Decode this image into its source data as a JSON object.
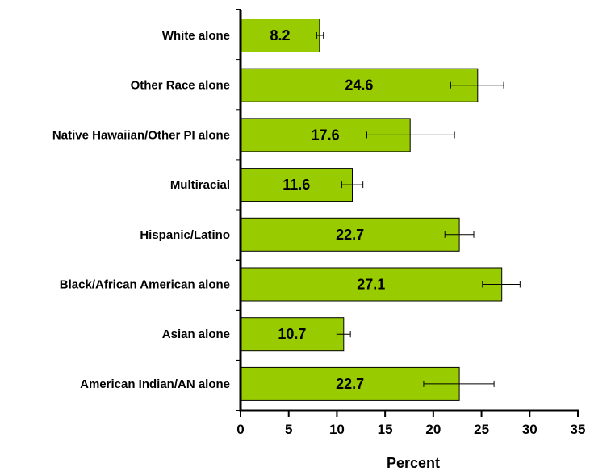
{
  "chart_data": {
    "type": "bar",
    "orientation": "horizontal",
    "categories": [
      "White alone",
      "Other Race alone",
      "Native Hawaiian/Other PI alone",
      "Multiracial",
      "Hispanic/Latino",
      "Black/African American alone",
      "Asian alone",
      "American Indian/AN alone"
    ],
    "values": [
      8.2,
      24.6,
      17.6,
      11.6,
      22.7,
      27.1,
      10.7,
      22.7
    ],
    "value_labels": [
      "8.2",
      "24.6",
      "17.6",
      "11.6",
      "22.7",
      "27.1",
      "10.7",
      "22.7"
    ],
    "error_low": [
      7.9,
      21.8,
      13.1,
      10.5,
      21.2,
      25.1,
      10.0,
      19.0
    ],
    "error_high": [
      8.6,
      27.3,
      22.2,
      12.7,
      24.2,
      29.0,
      11.4,
      26.3
    ],
    "xlabel": "Percent",
    "xlim": [
      0,
      35
    ],
    "xticks": [
      0,
      5,
      10,
      15,
      20,
      25,
      30,
      35
    ],
    "bar_color": "#99cc00",
    "grid": false
  }
}
